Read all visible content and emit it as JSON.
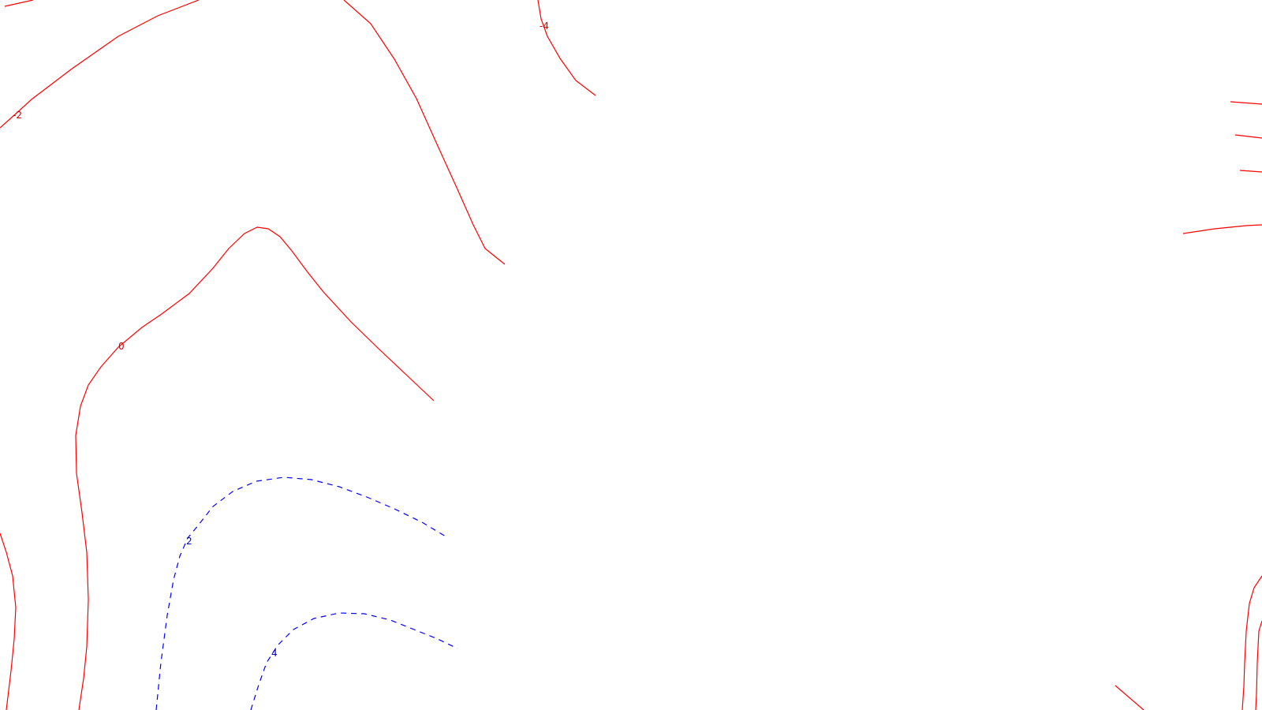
{
  "map": {
    "contour_levels": [
      {
        "value": "-4",
        "style": "solid",
        "color": "#ff0000"
      },
      {
        "value": "-2",
        "style": "solid",
        "color": "#ff0000"
      },
      {
        "value": "0",
        "style": "solid",
        "color": "#ff0000"
      },
      {
        "value": "2",
        "style": "dashed",
        "color": "#0000ff"
      },
      {
        "value": "4",
        "style": "dashed",
        "color": "#0000ff"
      }
    ],
    "labels": {
      "minus4": "-4",
      "minus2": "-2",
      "zero": "0",
      "two": "2",
      "four": "4"
    },
    "colors": {
      "negative_and_zero": "#ff0000",
      "positive": "#0000ff",
      "background": "#ffffff"
    }
  }
}
